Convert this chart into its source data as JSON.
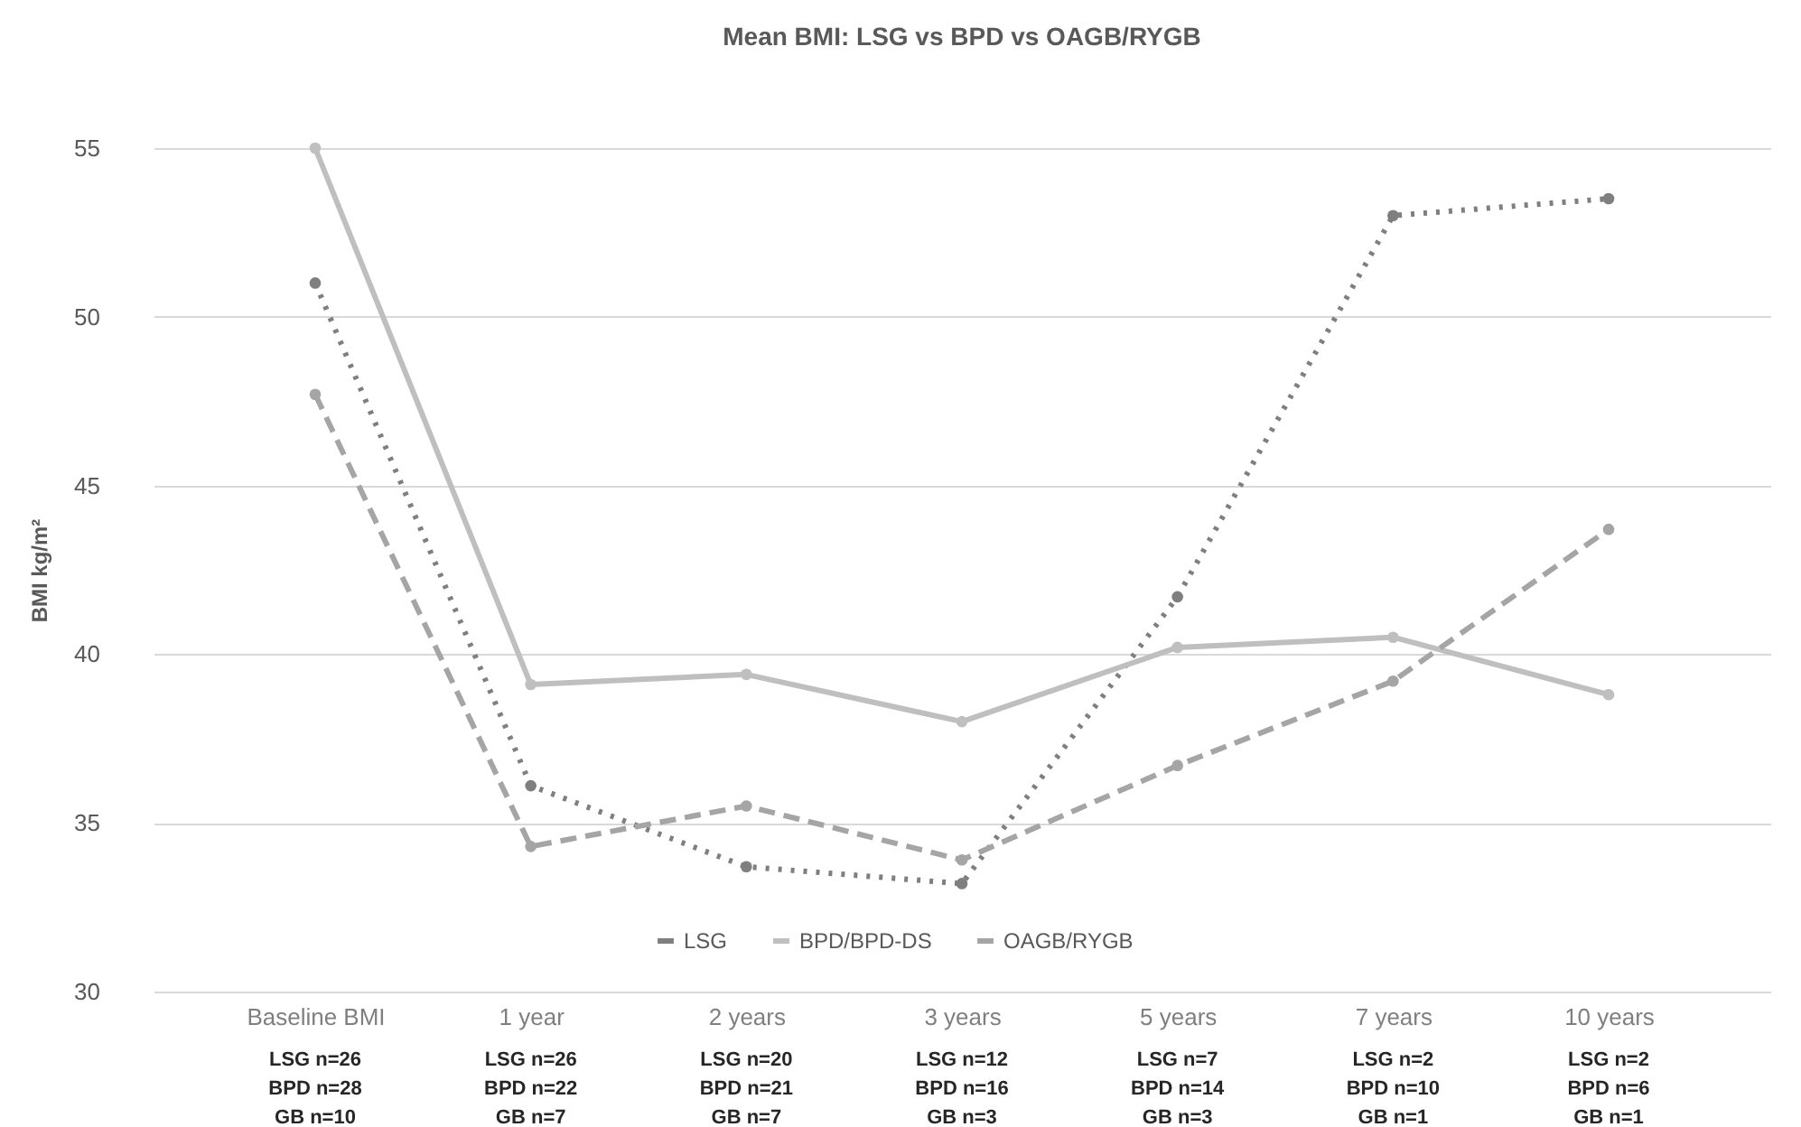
{
  "chart_data": {
    "type": "line",
    "title": "Mean BMI: LSG vs BPD vs OAGB/RYGB",
    "ylabel": "BMI kg/m²",
    "categories": [
      "Baseline BMI",
      "1 year",
      "2 years",
      "3 years",
      "5 years",
      "7 years",
      "10 years"
    ],
    "series": [
      {
        "name": "LSG",
        "color": "#7f7f7f",
        "line_style": "dotted",
        "values": [
          51.0,
          36.1,
          33.7,
          33.2,
          41.7,
          53.0,
          53.5
        ]
      },
      {
        "name": "BPD/BPD-DS",
        "color": "#bfbfbf",
        "line_style": "solid",
        "values": [
          55.0,
          39.1,
          39.4,
          38.0,
          40.2,
          40.5,
          38.8
        ]
      },
      {
        "name": "OAGB/RYGB",
        "color": "#a5a5a5",
        "line_style": "dashed",
        "values": [
          47.7,
          34.3,
          35.5,
          33.9,
          36.7,
          39.2,
          43.7
        ]
      }
    ],
    "ylim": [
      30,
      55
    ],
    "yticks": [
      30,
      35,
      40,
      45,
      50,
      55
    ],
    "grid": "y",
    "legend": "bottom",
    "marker": "circle",
    "annotations": [
      "LSG n=26\nBPD n=28\nGB n=10",
      "LSG n=26\nBPD n=22\nGB n=7",
      "LSG n=20\nBPD n=21\nGB n=7",
      "LSG n=12\nBPD n=16\nGB n=3",
      "LSG n=7\nBPD n=14\nGB n=3",
      "LSG n=2\nBPD n=10\nGB n=1",
      "LSG n=2\nBPD n=6\nGB n=1"
    ]
  }
}
